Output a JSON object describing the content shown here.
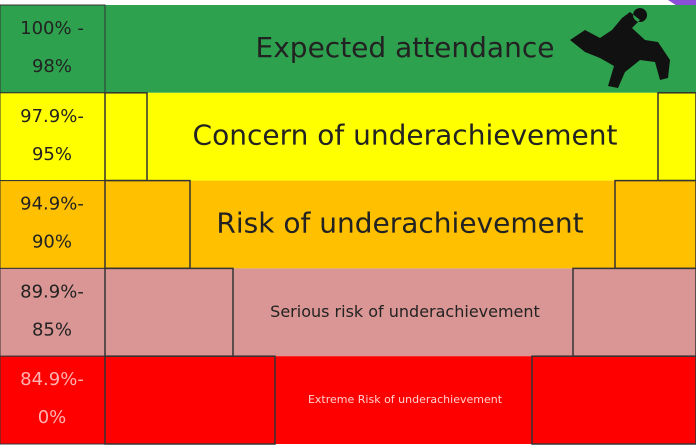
{
  "rows": [
    {
      "range": [
        "100% -",
        "98%"
      ],
      "label": "Expected attendance",
      "color": "#2ea14e"
    },
    {
      "range": [
        "97.9%-",
        "95%"
      ],
      "label": "Concern of underachievement",
      "color": "#ffff00"
    },
    {
      "range": [
        "94.9%-",
        "90%"
      ],
      "label": "Risk of underachievement",
      "color": "#ffc000"
    },
    {
      "range": [
        "89.9%-",
        "85%"
      ],
      "label": "Serious risk of underachievement",
      "color": "#d99694"
    },
    {
      "range": [
        "84.9%-",
        "0%"
      ],
      "label": "Extreme Risk of underachievement",
      "color": "#ff0000"
    }
  ]
}
